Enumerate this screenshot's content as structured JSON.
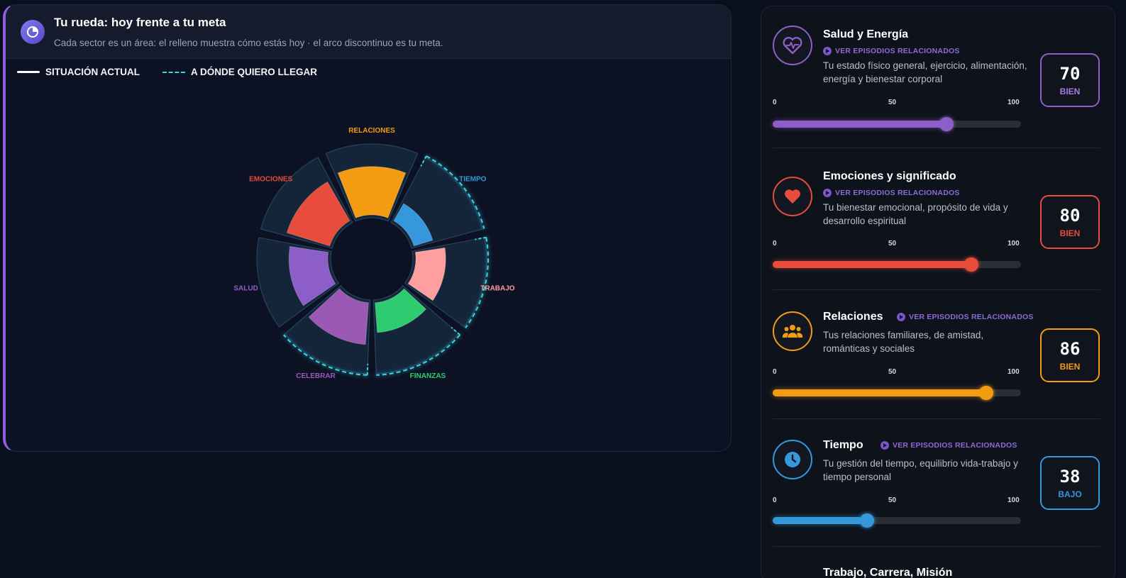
{
  "wheel_panel": {
    "title": "Tu rueda: hoy frente a tu meta",
    "subtitle": "Cada sector es un área: el relleno muestra cómo estás hoy · el arco discontinuo es tu meta.",
    "legend": {
      "current": "SITUACIÓN ACTUAL",
      "goal": "A DÓNDE QUIERO LLEGAR"
    },
    "colors": {
      "accent": "#8d5ee0",
      "goal_arc": "#3ad6e6",
      "empty_sector": "#14253a"
    }
  },
  "chart_data": {
    "type": "radial-bar",
    "title": "Tu rueda: hoy frente a tu meta",
    "scale": [
      0,
      100
    ],
    "categories": [
      "EMOCIONES",
      "RELACIONES",
      "TIEMPO",
      "TRABAJO",
      "FINANZAS",
      "CELEBRAR",
      "SALUD"
    ],
    "series": [
      {
        "name": "SITUACIÓN ACTUAL",
        "values": [
          80,
          86,
          38,
          55,
          55,
          75,
          70
        ]
      },
      {
        "name": "A DÓNDE QUIERO LLEGAR",
        "values": [
          null,
          null,
          100,
          100,
          100,
          100,
          null
        ]
      }
    ],
    "sector_colors": [
      "#e74c3c",
      "#f39c12",
      "#3498db",
      "#ff9e9e",
      "#2ecc71",
      "#9b59b6",
      "#8e5ec8"
    ],
    "label_colors": [
      "#e74c3c",
      "#f39c12",
      "#3498db",
      "#ff9e9e",
      "#2ecc71",
      "#9b59b6",
      "#8e5ec8"
    ]
  },
  "areas": [
    {
      "name": "Salud y Energía",
      "link": "VER EPISODIOS RELACIONADOS",
      "description": "Tu estado físico general, ejercicio, alimentación, energía y bienestar corporal",
      "score": "70",
      "status": "BIEN",
      "value": 70,
      "color": "#8e5ec8",
      "icon": "heart-pulse-icon"
    },
    {
      "name": "Emociones y significado",
      "link": "VER EPISODIOS RELACIONADOS",
      "description": "Tu bienestar emocional, propósito de vida y desarrollo espiritual",
      "score": "80",
      "status": "BIEN",
      "value": 80,
      "color": "#e74c3c",
      "icon": "heart-icon"
    },
    {
      "name": "Relaciones",
      "link": "VER EPISODIOS RELACIONADOS",
      "description": "Tus relaciones familiares, de amistad, románticas y sociales",
      "score": "86",
      "status": "BIEN",
      "value": 86,
      "color": "#f39c12",
      "icon": "people-icon"
    },
    {
      "name": "Tiempo",
      "link": "VER EPISODIOS RELACIONADOS",
      "description": "Tu gestión del tiempo, equilibrio vida-trabajo y tiempo personal",
      "score": "38",
      "status": "BAJO",
      "value": 38,
      "color": "#3498db",
      "icon": "clock-icon"
    },
    {
      "name": "Trabajo, Carrera, Misión"
    }
  ],
  "scale_ticks": [
    "0",
    "50",
    "100"
  ]
}
